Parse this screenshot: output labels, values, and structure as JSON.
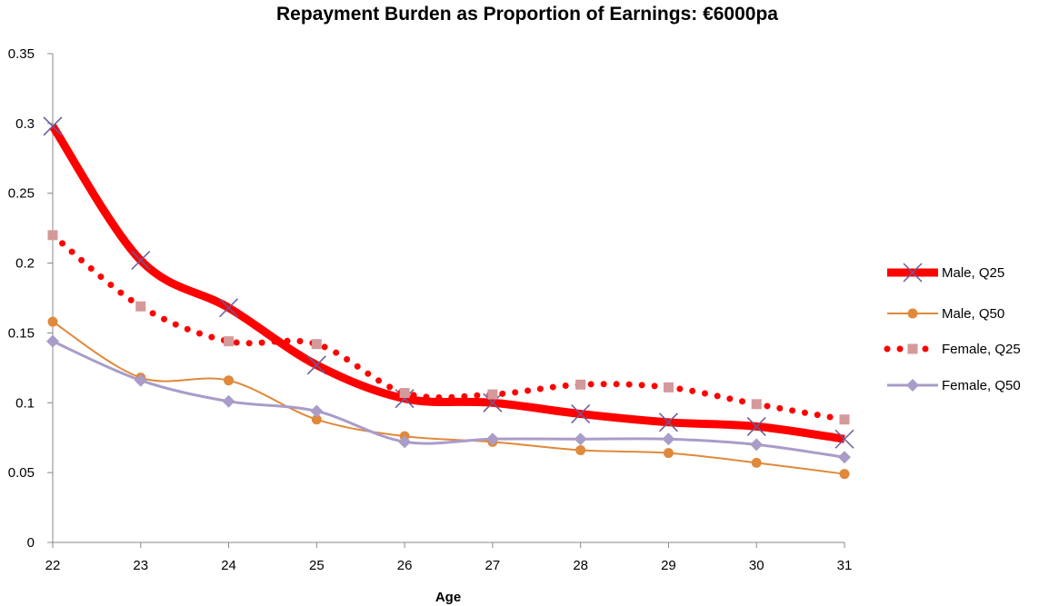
{
  "chart_data": {
    "type": "line",
    "title": "Repayment Burden as Proportion of Earnings: €6000pa",
    "xlabel": "Age",
    "ylabel": "",
    "x": [
      22,
      23,
      24,
      25,
      26,
      27,
      28,
      29,
      30,
      31
    ],
    "xticks": [
      "22",
      "23",
      "24",
      "25",
      "26",
      "27",
      "28",
      "29",
      "30",
      "31"
    ],
    "ylim": [
      0,
      0.35
    ],
    "yticks": [
      "0",
      "0.05",
      "0.1",
      "0.15",
      "0.2",
      "0.25",
      "0.3",
      "0.35"
    ],
    "grid": false,
    "legend_position": "right",
    "series": [
      {
        "name": "Male, Q25",
        "color": "#ff0000",
        "marker": "x",
        "marker_color": "#6a5a9a",
        "style": "thick",
        "values": [
          0.298,
          0.202,
          0.168,
          0.127,
          0.103,
          0.1,
          0.092,
          0.086,
          0.083,
          0.074
        ]
      },
      {
        "name": "Male, Q50",
        "color": "#e0893a",
        "marker": "circle",
        "marker_color": "#e0893a",
        "style": "thin",
        "values": [
          0.158,
          0.118,
          0.116,
          0.088,
          0.076,
          0.072,
          0.066,
          0.064,
          0.057,
          0.049
        ]
      },
      {
        "name": "Female, Q25",
        "color": "#ff0000",
        "marker": "square",
        "marker_color": "#d4999a",
        "style": "dotted",
        "values": [
          0.22,
          0.169,
          0.144,
          0.142,
          0.107,
          0.106,
          0.113,
          0.111,
          0.099,
          0.088
        ]
      },
      {
        "name": "Female, Q50",
        "color": "#a99cc8",
        "marker": "diamond",
        "marker_color": "#a99cc8",
        "style": "medium",
        "values": [
          0.144,
          0.116,
          0.101,
          0.094,
          0.072,
          0.074,
          0.074,
          0.074,
          0.07,
          0.061
        ]
      }
    ]
  }
}
